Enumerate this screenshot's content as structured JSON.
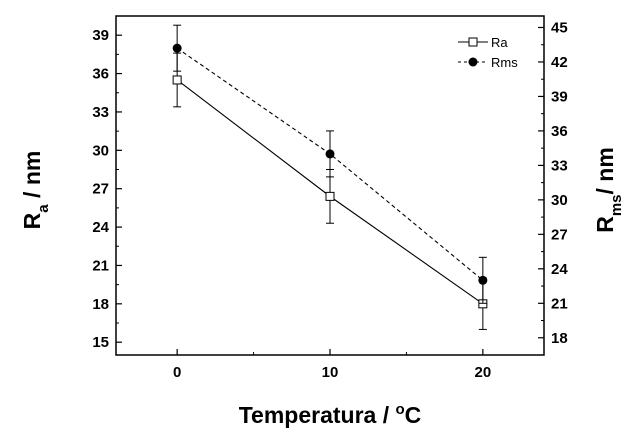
{
  "chart_data": {
    "type": "line",
    "x": [
      0,
      10,
      20
    ],
    "xlabel": {
      "main": "Temperatura / ",
      "sup": "o",
      "unit": "C"
    },
    "ylabel_left": {
      "main": "R",
      "sub": "a",
      "unit": " / nm"
    },
    "ylabel_right": {
      "main": "R",
      "sub": "ms",
      "unit": "/ nm"
    },
    "xlim": [
      -4,
      24
    ],
    "ylim_left": [
      14,
      40.5
    ],
    "ylim_right": [
      16.5,
      46
    ],
    "xticks": [
      0,
      10,
      20
    ],
    "yticks_left": [
      15,
      18,
      21,
      24,
      27,
      30,
      33,
      36,
      39
    ],
    "yticks_right": [
      18,
      21,
      24,
      27,
      30,
      33,
      36,
      39,
      42,
      45
    ],
    "series": [
      {
        "name": "Ra",
        "axis": "left",
        "marker": "open-square",
        "line": "solid",
        "values": [
          35.5,
          26.4,
          18.0
        ],
        "errors": [
          2.1,
          2.1,
          2.0
        ]
      },
      {
        "name": "Rms",
        "axis": "right",
        "marker": "filled-circle",
        "line": "dashed",
        "values": [
          43.2,
          34.0,
          23.0
        ],
        "errors": [
          2.0,
          2.0,
          2.0
        ]
      }
    ],
    "legend_position": "top-right",
    "grid": false
  }
}
